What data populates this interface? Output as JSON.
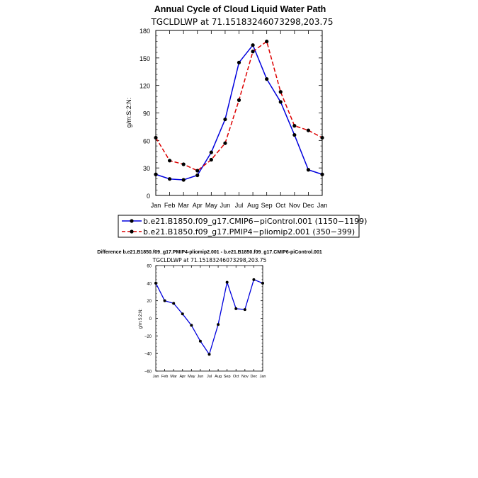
{
  "chart_data": [
    {
      "type": "line",
      "title": "Annual Cycle of Cloud Liquid Water Path",
      "subtitle": "TGCLDLWP  at  71.15183246073298,203.75",
      "xlabel": "",
      "ylabel": "g/m:S:2:N:",
      "categories": [
        "Jan",
        "Feb",
        "Mar",
        "Apr",
        "May",
        "Jun",
        "Jul",
        "Aug",
        "Sep",
        "Oct",
        "Nov",
        "Dec",
        "Jan"
      ],
      "ylim": [
        0,
        180
      ],
      "yticks": [
        0,
        30,
        60,
        90,
        120,
        150,
        180
      ],
      "series": [
        {
          "name": "b.e21.B1850.f09_g17.CMIP6-piControl.001  (1150-1199)",
          "color": "#0000dd",
          "style": "solid",
          "values": [
            23,
            18,
            17,
            22,
            47,
            83,
            145,
            164,
            127,
            102,
            66,
            28,
            23
          ]
        },
        {
          "name": "b.e21.B1850.f09_g17.PMIP4-pliomip2.001  (350-399)",
          "color": "#dd0000",
          "style": "dashed",
          "values": [
            63,
            38,
            34,
            27,
            39,
            57,
            104,
            157,
            168,
            113,
            76,
            71,
            63
          ]
        }
      ],
      "legend": {
        "position": "bottom",
        "labels": [
          "b.e21.B1850.f09_g17.CMIP6−piControl.001  (1150−1199)",
          "b.e21.B1850.f09_g17.PMIP4−pliomip2.001  (350−399)"
        ]
      }
    },
    {
      "type": "line",
      "title": "Difference b.e21.B1850.f09_g17.PMIP4-pliomip2.001 - b.e21.B1850.f09_g17.CMIP6-piControl.001",
      "subtitle": "TGCLDLWP  at  71.15183246073298,203.75",
      "xlabel": "",
      "ylabel": "g/m:S:2:N:",
      "categories": [
        "Jan",
        "Feb",
        "Mar",
        "Apr",
        "May",
        "Jun",
        "Jul",
        "Aug",
        "Sep",
        "Oct",
        "Nov",
        "Dec",
        "Jan"
      ],
      "ylim": [
        -60,
        60
      ],
      "yticks": [
        -60,
        -40,
        -20,
        0,
        20,
        40,
        60
      ],
      "series": [
        {
          "name": "Difference",
          "color": "#0000dd",
          "style": "solid",
          "values": [
            40,
            20,
            17,
            5,
            -8,
            -26,
            -41,
            -7,
            41,
            11,
            10,
            44,
            40
          ]
        }
      ]
    }
  ]
}
